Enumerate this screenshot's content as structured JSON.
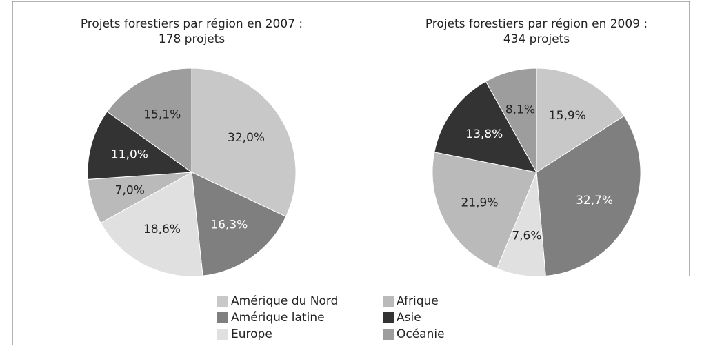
{
  "chart_data": [
    {
      "type": "pie",
      "title": "Projets forestiers par région en 2007 :",
      "subtitle": "178 projets",
      "categories": [
        "Amérique du Nord",
        "Amérique latine",
        "Europe",
        "Afrique",
        "Asie",
        "Océanie"
      ],
      "values": [
        32.0,
        16.3,
        18.6,
        7.0,
        11.0,
        15.1
      ],
      "value_labels": [
        "32,0%",
        "16,3%",
        "18,6%",
        "7,0%",
        "11,0%",
        "15,1%"
      ],
      "colors": [
        "#c8c8c8",
        "#7f7f7f",
        "#e0e0e0",
        "#bababa",
        "#333333",
        "#9d9d9d"
      ]
    },
    {
      "type": "pie",
      "title": "Projets forestiers par région en 2009 :",
      "subtitle": "434 projets",
      "categories": [
        "Amérique du Nord",
        "Amérique latine",
        "Europe",
        "Afrique",
        "Asie",
        "Océanie"
      ],
      "values": [
        15.9,
        32.7,
        7.6,
        21.9,
        13.8,
        8.1
      ],
      "value_labels": [
        "15,9%",
        "32,7%",
        "7,6%",
        "21,9%",
        "13,8%",
        "8,1%"
      ],
      "colors": [
        "#c8c8c8",
        "#7f7f7f",
        "#e0e0e0",
        "#bababa",
        "#333333",
        "#9d9d9d"
      ]
    }
  ]
}
